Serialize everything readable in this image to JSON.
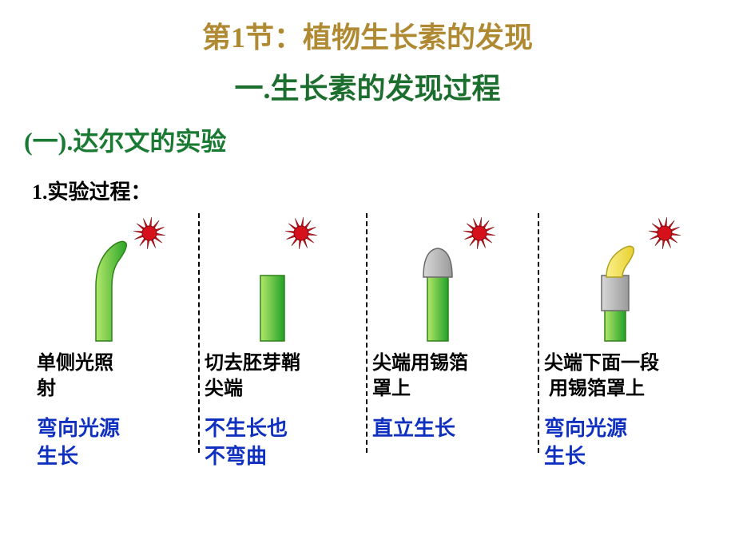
{
  "colors": {
    "title_gold": "#b08a32",
    "green_dark": "#1c6e2e",
    "green_heading": "#1a7a33",
    "blue_result": "#1030c0",
    "sun_red": "#d6111c",
    "sun_stroke": "#7a0c10",
    "plant_green_top": "#a6e24c",
    "plant_green_bottom": "#1f9e2c",
    "plant_border": "#2e8218",
    "tip_yellow": "#f5e24a",
    "tip_stroke": "#b0a020",
    "foil_fill": "#bcbcbc",
    "foil_stroke": "#6a6a6a"
  },
  "title": "第1节：植物生长素的发现",
  "subtitle": "一.生长素的发现过程",
  "section_heading": "(一).达尔文的实验",
  "process_heading": "1.实验过程：",
  "experiments": [
    {
      "desc": "单侧光照射",
      "result": "弯向光源生长"
    },
    {
      "desc": "切去胚芽鞘尖端",
      "result": "不生长也不弯曲"
    },
    {
      "desc": "尖端用锡箔罩上",
      "result": "直立生长"
    },
    {
      "desc": "尖端下面一段用锡箔罩上",
      "result": "弯向光源生长"
    }
  ],
  "style": {
    "title_fontsize": 36,
    "heading_fontsize": 32,
    "desc_fontsize": 24,
    "result_fontsize": 26,
    "sun_size": 40,
    "stage_height": 170,
    "divider_dash": "2px dashed"
  }
}
